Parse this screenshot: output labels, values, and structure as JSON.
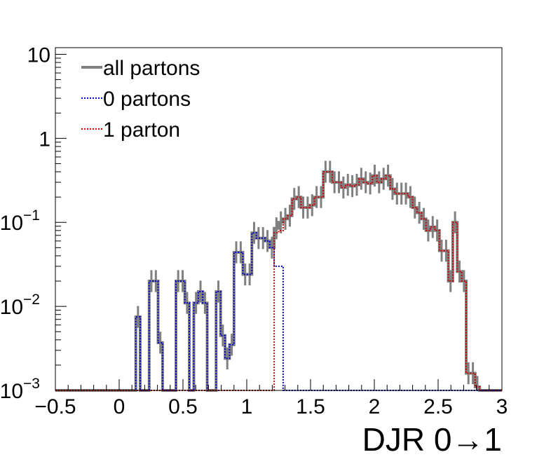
{
  "chart_data": {
    "type": "line",
    "step": true,
    "log_y": true,
    "xlabel": "DJR 0→1",
    "ylabel": "",
    "title": "",
    "xlim": [
      -0.5,
      3.0
    ],
    "ylim": [
      0.001,
      12
    ],
    "x_ticks": [
      {
        "value": -0.5,
        "label": "−0.5"
      },
      {
        "value": 0,
        "label": "0"
      },
      {
        "value": 0.5,
        "label": "0.5"
      },
      {
        "value": 1,
        "label": "1"
      },
      {
        "value": 1.5,
        "label": "1.5"
      },
      {
        "value": 2,
        "label": "2"
      },
      {
        "value": 2.5,
        "label": "2.5"
      },
      {
        "value": 3,
        "label": "3"
      }
    ],
    "y_ticks": [
      {
        "value": 0.001,
        "base": "10",
        "exp": "−3"
      },
      {
        "value": 0.01,
        "base": "10",
        "exp": "−2"
      },
      {
        "value": 0.1,
        "base": "10",
        "exp": "−1"
      },
      {
        "value": 1,
        "base": "1",
        "exp": ""
      },
      {
        "value": 10,
        "base": "10",
        "exp": ""
      }
    ],
    "legend_position": "top-left",
    "bin_width": 0.035,
    "x_start": -0.5,
    "series": [
      {
        "name": "all partons",
        "color": "#808080",
        "style": "solid",
        "values": [
          0.001,
          0.001,
          0.001,
          0.001,
          0.001,
          0.001,
          0.001,
          0.001,
          0.001,
          0.001,
          0.001,
          0.001,
          0.001,
          0.001,
          0.001,
          0.001,
          0.001,
          0.001,
          0.0075,
          0.001,
          0.001,
          0.02,
          0.02,
          0.0037,
          0.001,
          0.001,
          0.001,
          0.02,
          0.02,
          0.011,
          0.001,
          0.011,
          0.015,
          0.011,
          0.001,
          0.001,
          0.015,
          0.0045,
          0.0024,
          0.0035,
          0.044,
          0.044,
          0.024,
          0.024,
          0.075,
          0.065,
          0.065,
          0.06,
          0.05,
          0.085,
          0.1,
          0.11,
          0.12,
          0.19,
          0.2,
          0.15,
          0.15,
          0.16,
          0.2,
          0.2,
          0.4,
          0.4,
          0.3,
          0.3,
          0.26,
          0.28,
          0.27,
          0.28,
          0.33,
          0.3,
          0.29,
          0.36,
          0.3,
          0.33,
          0.36,
          0.25,
          0.22,
          0.22,
          0.22,
          0.2,
          0.15,
          0.13,
          0.11,
          0.08,
          0.088,
          0.08,
          0.046,
          0.046,
          0.02,
          0.1,
          0.026,
          0.02,
          0.0016,
          0.0016,
          0.0011,
          0.001,
          0.001,
          0.001,
          0.001,
          0.001
        ]
      },
      {
        "name": "0 partons",
        "color": "#0000cc",
        "style": "dotted",
        "values": [
          0.001,
          0.001,
          0.001,
          0.001,
          0.001,
          0.001,
          0.001,
          0.001,
          0.001,
          0.001,
          0.001,
          0.001,
          0.001,
          0.001,
          0.001,
          0.001,
          0.001,
          0.001,
          0.0075,
          0.001,
          0.001,
          0.02,
          0.02,
          0.0037,
          0.001,
          0.001,
          0.001,
          0.02,
          0.02,
          0.011,
          0.001,
          0.011,
          0.015,
          0.011,
          0.001,
          0.001,
          0.015,
          0.0045,
          0.0024,
          0.0035,
          0.044,
          0.044,
          0.024,
          0.024,
          0.075,
          0.065,
          0.065,
          0.06,
          0.05,
          0.03,
          0.03,
          0.001,
          0.001,
          0.001,
          0.001,
          0.001,
          0.001,
          0.001,
          0.001,
          0.001,
          0.001,
          0.001,
          0.001,
          0.001,
          0.001,
          0.001,
          0.001,
          0.001,
          0.001,
          0.001,
          0.001,
          0.001,
          0.001,
          0.001,
          0.001,
          0.001,
          0.001,
          0.001,
          0.001,
          0.001,
          0.001,
          0.001,
          0.001,
          0.001,
          0.001,
          0.001,
          0.001,
          0.001,
          0.001,
          0.001,
          0.001,
          0.001,
          0.001,
          0.001,
          0.001,
          0.001,
          0.001,
          0.001,
          0.001,
          0.001
        ]
      },
      {
        "name": "1 parton",
        "color": "#cc0000",
        "style": "dotted",
        "values": [
          0.001,
          0.001,
          0.001,
          0.001,
          0.001,
          0.001,
          0.001,
          0.001,
          0.001,
          0.001,
          0.001,
          0.001,
          0.001,
          0.001,
          0.001,
          0.001,
          0.001,
          0.001,
          0.001,
          0.001,
          0.001,
          0.001,
          0.001,
          0.001,
          0.001,
          0.001,
          0.001,
          0.001,
          0.001,
          0.001,
          0.001,
          0.001,
          0.001,
          0.001,
          0.001,
          0.001,
          0.001,
          0.001,
          0.001,
          0.001,
          0.001,
          0.001,
          0.001,
          0.001,
          0.001,
          0.001,
          0.001,
          0.001,
          0.001,
          0.075,
          0.08,
          0.11,
          0.12,
          0.19,
          0.2,
          0.15,
          0.15,
          0.16,
          0.2,
          0.2,
          0.4,
          0.4,
          0.3,
          0.3,
          0.26,
          0.28,
          0.27,
          0.28,
          0.33,
          0.3,
          0.29,
          0.36,
          0.3,
          0.33,
          0.36,
          0.25,
          0.22,
          0.22,
          0.22,
          0.2,
          0.15,
          0.13,
          0.11,
          0.08,
          0.088,
          0.08,
          0.046,
          0.046,
          0.02,
          0.1,
          0.026,
          0.02,
          0.0016,
          0.0016,
          0.0011,
          0.001,
          0.001,
          0.001,
          0.001,
          0.001
        ]
      }
    ]
  }
}
